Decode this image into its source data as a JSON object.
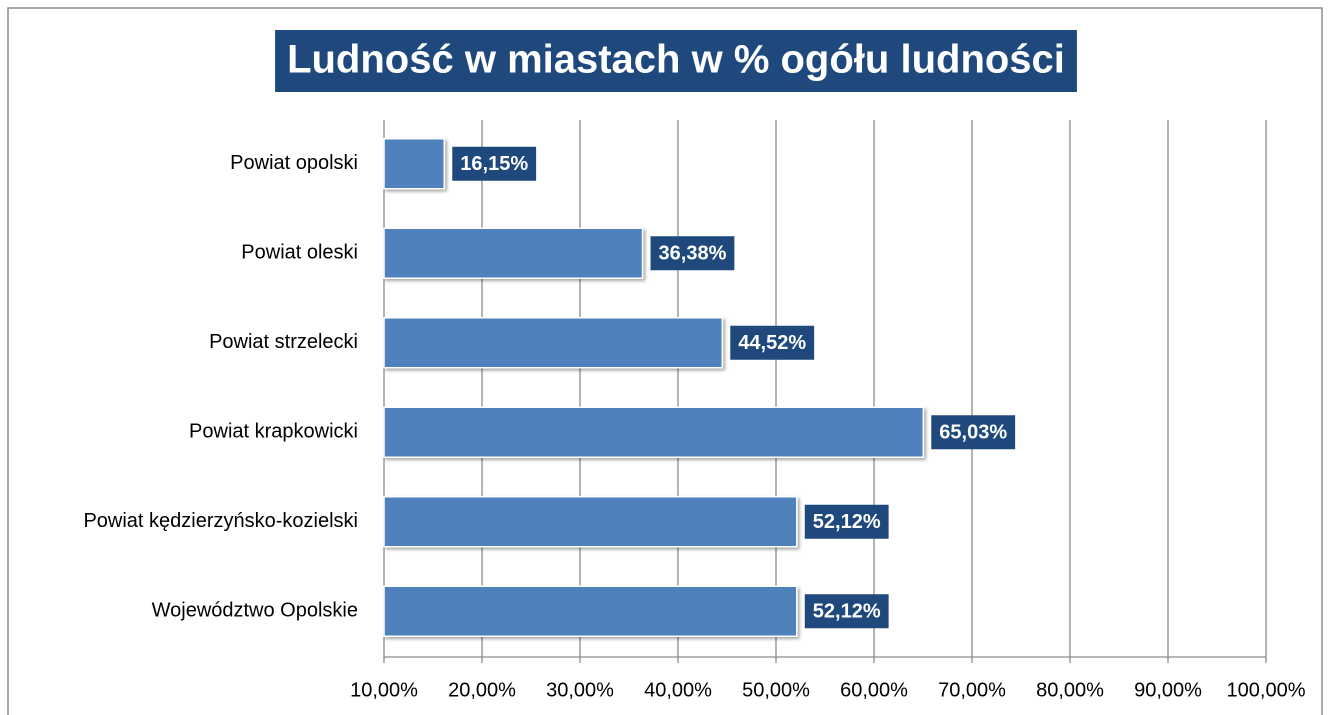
{
  "chart_data": {
    "type": "barh",
    "title": "Ludność w miastach w % ogółu ludności",
    "categories": [
      "Powiat opolski",
      "Powiat oleski",
      "Powiat strzelecki",
      "Powiat krapkowicki",
      "Powiat kędzierzyńsko-kozielski",
      "Województwo Opolskie"
    ],
    "values": [
      16.15,
      36.38,
      44.52,
      65.03,
      52.12,
      52.12
    ],
    "value_labels": [
      "16,15%",
      "36,38%",
      "44,52%",
      "65,03%",
      "52,12%",
      "52,12%"
    ],
    "color": "#4f81bd",
    "xlim": [
      10,
      100
    ],
    "xticks": [
      {
        "value": 10,
        "label": "10,00%"
      },
      {
        "value": 20,
        "label": "20,00%"
      },
      {
        "value": 30,
        "label": "30,00%"
      },
      {
        "value": 40,
        "label": "40,00%"
      },
      {
        "value": 50,
        "label": "50,00%"
      },
      {
        "value": 60,
        "label": "60,00%"
      },
      {
        "value": 70,
        "label": "70,00%"
      },
      {
        "value": 80,
        "label": "80,00%"
      },
      {
        "value": 90,
        "label": "90,00%"
      },
      {
        "value": 100,
        "label": "100,00%"
      }
    ],
    "grid": true
  }
}
